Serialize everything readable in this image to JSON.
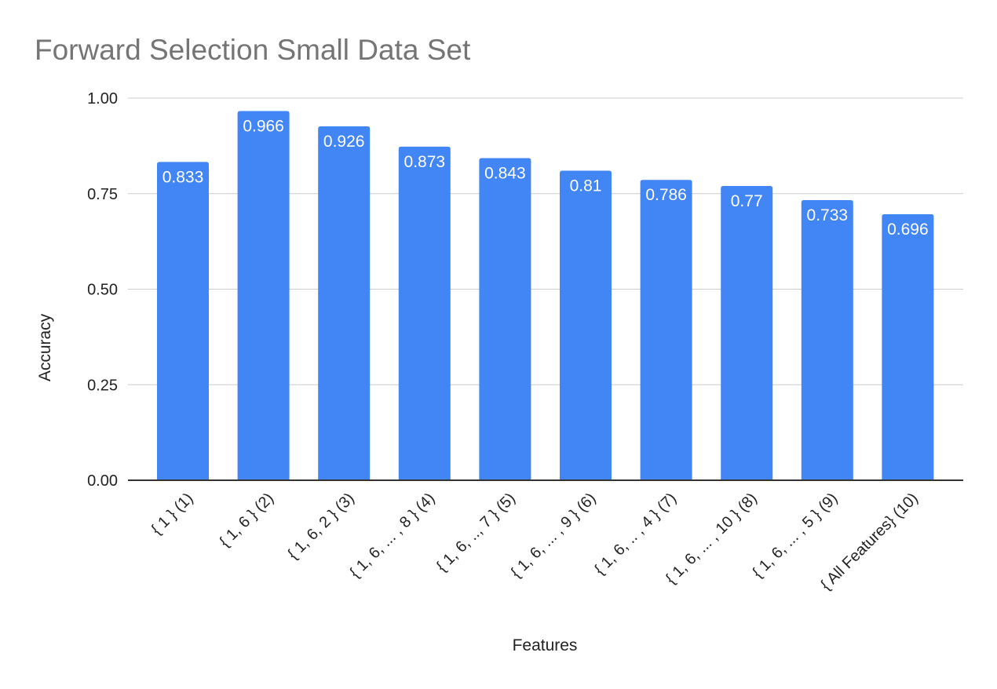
{
  "chart_data": {
    "type": "bar",
    "title": "Forward Selection Small Data Set",
    "xlabel": "Features",
    "ylabel": "Accuracy",
    "categories": [
      "{ 1 } (1)",
      "{ 1, 6 } (2)",
      "{ 1, 6, 2 } (3)",
      "{ 1, 6, ... , 8 } (4)",
      "{ 1, 6, .., 7 } (5)",
      "{ 1, 6, ... , 9 } (6)",
      "{ 1, 6, .. , 4 } (7)",
      "{ 1, 6, ... , 10 } (8)",
      "{ 1, 6, ... , 5 } (9)",
      "{ All Features} (10)"
    ],
    "values": [
      0.833,
      0.966,
      0.926,
      0.873,
      0.843,
      0.81,
      0.786,
      0.77,
      0.733,
      0.696
    ],
    "data_labels": [
      "0.833",
      "0.966",
      "0.926",
      "0.873",
      "0.843",
      "0.81",
      "0.786",
      "0.77",
      "0.733",
      "0.696"
    ],
    "ylim": [
      0,
      1
    ],
    "yticks": [
      0,
      0.25,
      0.5,
      0.75,
      1
    ],
    "ytick_labels": [
      "0.00",
      "0.25",
      "0.50",
      "0.75",
      "1.00"
    ],
    "grid": true,
    "legend": "none",
    "bar_color": "#4285f4",
    "label_color": "#ffffff",
    "title_color": "#757575"
  }
}
